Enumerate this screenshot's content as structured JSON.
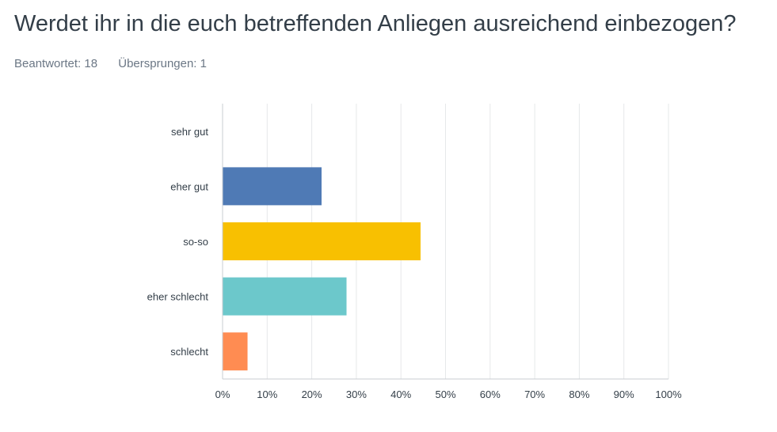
{
  "question": {
    "title": "Werdet ihr in die euch betreffenden Anliegen ausreichend einbezogen?",
    "answered": "Beantwortet: 18",
    "skipped": "Übersprungen: 1"
  },
  "chart_data": {
    "type": "bar",
    "orientation": "horizontal",
    "categories": [
      "sehr gut",
      "eher gut",
      "so-so",
      "eher schlecht",
      "schlecht"
    ],
    "values": [
      0,
      22.2,
      44.4,
      27.8,
      5.6
    ],
    "colors": [
      "#4f7ab5",
      "#4f7ab5",
      "#f8c001",
      "#6cc8cb",
      "#ff8c52"
    ],
    "xlim": [
      0,
      100
    ],
    "xticks": [
      "0%",
      "10%",
      "20%",
      "30%",
      "40%",
      "50%",
      "60%",
      "70%",
      "80%",
      "90%",
      "100%"
    ],
    "grid": true,
    "legend": "none"
  }
}
